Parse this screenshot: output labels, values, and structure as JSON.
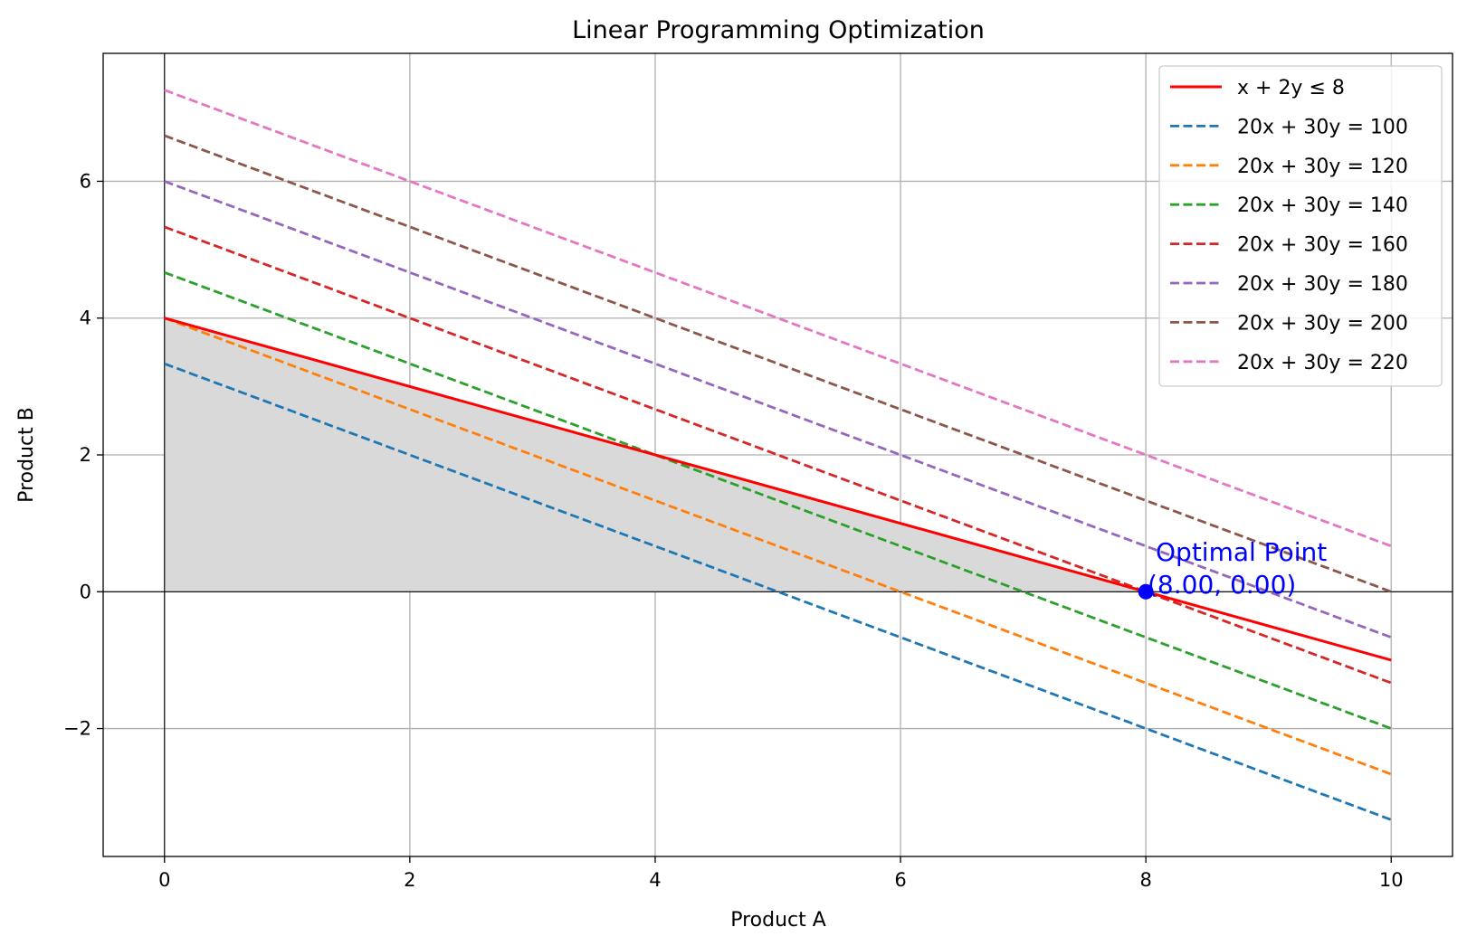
{
  "chart_data": {
    "type": "line",
    "title": "Linear Programming Optimization",
    "xlabel": "Product A",
    "ylabel": "Product B",
    "xlim": [
      -0.5,
      10.5
    ],
    "ylim": [
      -3.87,
      7.87
    ],
    "xticks": [
      0,
      2,
      4,
      6,
      8,
      10
    ],
    "xtick_labels": [
      "0",
      "2",
      "4",
      "6",
      "8",
      "10"
    ],
    "yticks": [
      -2,
      0,
      2,
      4,
      6
    ],
    "ytick_labels": [
      "−2",
      "0",
      "2",
      "4",
      "6"
    ],
    "grid": true,
    "legend_position": "top-right",
    "feasible_region": {
      "description": "shaded",
      "polygon": [
        [
          0,
          0
        ],
        [
          0,
          4
        ],
        [
          8,
          0
        ]
      ],
      "color": "#d9d9d9"
    },
    "series": [
      {
        "name": "x + 2y ≤ 8",
        "style": "solid",
        "color": "#ff0000",
        "x": [
          0,
          10
        ],
        "y": [
          4,
          -1
        ]
      },
      {
        "name": "20x + 30y = 100",
        "style": "dashed",
        "color": "#1f77b4",
        "x": [
          0,
          10
        ],
        "y": [
          3.333,
          -3.333
        ]
      },
      {
        "name": "20x + 30y = 120",
        "style": "dashed",
        "color": "#ff7f0e",
        "x": [
          0,
          10
        ],
        "y": [
          4.0,
          -2.667
        ]
      },
      {
        "name": "20x + 30y = 140",
        "style": "dashed",
        "color": "#2ca02c",
        "x": [
          0,
          10
        ],
        "y": [
          4.667,
          -2.0
        ]
      },
      {
        "name": "20x + 30y = 160",
        "style": "dashed",
        "color": "#d62728",
        "x": [
          0,
          10
        ],
        "y": [
          5.333,
          -1.333
        ]
      },
      {
        "name": "20x + 30y = 180",
        "style": "dashed",
        "color": "#9467bd",
        "x": [
          0,
          10
        ],
        "y": [
          6.0,
          -0.667
        ]
      },
      {
        "name": "20x + 30y = 200",
        "style": "dashed",
        "color": "#8c564b",
        "x": [
          0,
          10
        ],
        "y": [
          6.667,
          0.0
        ]
      },
      {
        "name": "20x + 30y = 220",
        "style": "dashed",
        "color": "#e377c2",
        "x": [
          0,
          10
        ],
        "y": [
          7.333,
          0.667
        ]
      }
    ],
    "optimal_point": {
      "x": 8.0,
      "y": 0.0,
      "color": "#0000ff",
      "label_line1": "Optimal Point",
      "label_line2": "(8.00, 0.00)"
    }
  }
}
